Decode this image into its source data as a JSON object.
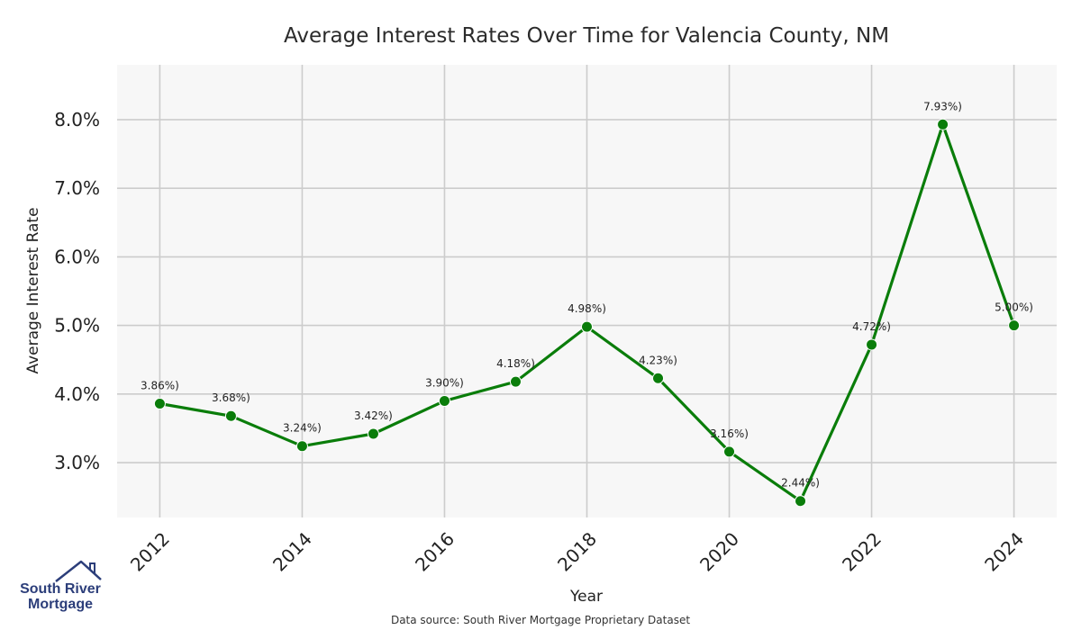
{
  "chart_data": {
    "type": "line",
    "title": "Average Interest Rates Over Time for Valencia County, NM",
    "xlabel": "Year",
    "ylabel": "Average Interest Rate",
    "x": [
      2012,
      2013,
      2014,
      2015,
      2016,
      2017,
      2018,
      2019,
      2020,
      2021,
      2022,
      2023,
      2024
    ],
    "values": [
      3.86,
      3.68,
      3.24,
      3.42,
      3.9,
      4.18,
      4.98,
      4.23,
      3.16,
      2.44,
      4.72,
      7.93,
      5.0
    ],
    "data_labels": [
      "3.86%)",
      "3.68%)",
      "3.24%)",
      "3.42%)",
      "3.90%)",
      "4.18%)",
      "4.98%)",
      "4.23%)",
      "3.16%)",
      "2.44%)",
      "4.72%)",
      "7.93%)",
      "5.00%)"
    ],
    "xticks": [
      "2012",
      "2014",
      "2016",
      "2018",
      "2020",
      "2022",
      "2024"
    ],
    "yticks": [
      "3.0%",
      "4.0%",
      "5.0%",
      "6.0%",
      "7.0%",
      "8.0%"
    ],
    "ylim": [
      2.2,
      8.8
    ],
    "xlim": [
      2011.4,
      2024.6
    ],
    "grid": true,
    "line_color": "#0a7d0a",
    "background": "#f7f7f7",
    "grid_color": "#cccccc"
  },
  "source_note": "Data source: South River Mortgage Proprietary Dataset",
  "logo": {
    "line1": "South River",
    "line2": "Mortgage",
    "color": "#2c3e7a"
  }
}
